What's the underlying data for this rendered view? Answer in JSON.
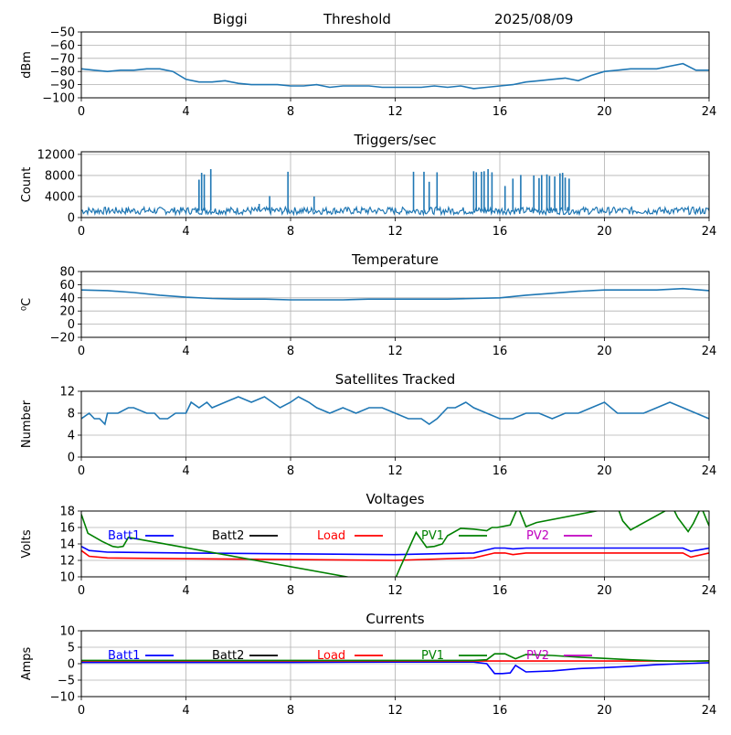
{
  "header": {
    "station": "Biggi",
    "mode": "Threshold",
    "date": "2025/08/09"
  },
  "colors": {
    "series_default": "#1f77b4",
    "grid": "#b0b0b0",
    "batt1": "#0000ff",
    "batt2": "#000000",
    "load": "#ff0000",
    "pv1": "#008000",
    "pv2": "#c000c0"
  },
  "chart_data": [
    {
      "type": "line",
      "title": "",
      "xlabel": "",
      "ylabel": "dBm",
      "xlim": [
        0,
        24
      ],
      "ylim": [
        -100,
        -50
      ],
      "xticks": [
        0,
        4,
        8,
        12,
        16,
        20,
        24
      ],
      "yticks": [
        -100,
        -90,
        -80,
        -70,
        -60,
        -50
      ],
      "grid": true,
      "series": [
        {
          "x": [
            0,
            0.5,
            1,
            1.5,
            2,
            2.5,
            3,
            3.5,
            4,
            4.5,
            5,
            5.5,
            6,
            6.5,
            7,
            7.5,
            8,
            8.5,
            9,
            9.5,
            10,
            10.5,
            11,
            11.5,
            12,
            12.5,
            13,
            13.5,
            14,
            14.5,
            15,
            15.5,
            16,
            16.5,
            17,
            17.5,
            18,
            18.5,
            19,
            19.5,
            20,
            20.5,
            21,
            21.5,
            22,
            22.5,
            23,
            23.5,
            24
          ],
          "y": [
            -78,
            -79,
            -80,
            -79,
            -79,
            -78,
            -78,
            -80,
            -86,
            -88,
            -88,
            -87,
            -89,
            -90,
            -90,
            -90,
            -91,
            -91,
            -90,
            -92,
            -91,
            -91,
            -91,
            -92,
            -92,
            -92,
            -92,
            -91,
            -92,
            -91,
            -93,
            -92,
            -91,
            -90,
            -88,
            -87,
            -86,
            -85,
            -87,
            -83,
            -80,
            -79,
            -78,
            -78,
            -78,
            -76,
            -74,
            -79,
            -79
          ]
        }
      ]
    },
    {
      "type": "line",
      "title": "Triggers/sec",
      "xlabel": "",
      "ylabel": "Count",
      "xlim": [
        0,
        24
      ],
      "ylim": [
        0,
        12500
      ],
      "xticks": [
        0,
        4,
        8,
        12,
        16,
        20,
        24
      ],
      "yticks": [
        0,
        4000,
        8000,
        12000
      ],
      "grid": true,
      "baseline": 1300,
      "spikes": [
        [
          4.5,
          7200
        ],
        [
          4.6,
          8500
        ],
        [
          4.7,
          8200
        ],
        [
          4.95,
          9200
        ],
        [
          6.8,
          2600
        ],
        [
          7.2,
          4100
        ],
        [
          7.9,
          8700
        ],
        [
          8.9,
          4000
        ],
        [
          12.7,
          8700
        ],
        [
          13.1,
          8700
        ],
        [
          13.3,
          6800
        ],
        [
          13.6,
          8600
        ],
        [
          15.0,
          8800
        ],
        [
          15.1,
          8600
        ],
        [
          15.3,
          8700
        ],
        [
          15.4,
          8800
        ],
        [
          15.55,
          9200
        ],
        [
          15.7,
          8600
        ],
        [
          16.2,
          6000
        ],
        [
          16.5,
          7400
        ],
        [
          16.8,
          8100
        ],
        [
          17.3,
          8000
        ],
        [
          17.5,
          7500
        ],
        [
          17.6,
          8100
        ],
        [
          17.8,
          8200
        ],
        [
          17.9,
          7900
        ],
        [
          18.1,
          7800
        ],
        [
          18.3,
          8400
        ],
        [
          18.4,
          8500
        ],
        [
          18.5,
          7600
        ],
        [
          18.65,
          7400
        ]
      ]
    },
    {
      "type": "line",
      "title": "Temperature",
      "xlabel": "",
      "ylabel": "⁰C",
      "xlim": [
        0,
        24
      ],
      "ylim": [
        -20,
        80
      ],
      "xticks": [
        0,
        4,
        8,
        12,
        16,
        20,
        24
      ],
      "yticks": [
        -20,
        0,
        20,
        40,
        60,
        80
      ],
      "grid": true,
      "series": [
        {
          "x": [
            0,
            1,
            2,
            3,
            4,
            5,
            6,
            7,
            8,
            9,
            10,
            11,
            12,
            13,
            14,
            15,
            16,
            17,
            18,
            19,
            20,
            21,
            22,
            23,
            24
          ],
          "y": [
            52,
            51,
            48,
            44,
            41,
            39,
            38,
            38,
            37,
            37,
            37,
            38,
            38,
            38,
            38,
            39,
            40,
            44,
            47,
            50,
            52,
            52,
            52,
            54,
            51
          ]
        }
      ]
    },
    {
      "type": "line",
      "title": "Satellites Tracked",
      "xlabel": "",
      "ylabel": "Number",
      "xlim": [
        0,
        24
      ],
      "ylim": [
        0,
        12
      ],
      "xticks": [
        0,
        4,
        8,
        12,
        16,
        20,
        24
      ],
      "yticks": [
        0,
        4,
        8,
        12
      ],
      "grid": true,
      "series": [
        {
          "x": [
            0,
            0.3,
            0.5,
            0.7,
            0.9,
            1,
            1.4,
            1.8,
            2,
            2.5,
            2.8,
            3,
            3.3,
            3.6,
            4,
            4.2,
            4.5,
            4.8,
            5,
            5.5,
            6,
            6.5,
            7,
            7.3,
            7.6,
            8,
            8.3,
            8.7,
            9,
            9.5,
            10,
            10.5,
            11,
            11.5,
            12,
            12.5,
            13,
            13.3,
            13.6,
            14,
            14.3,
            14.7,
            15,
            15.5,
            16,
            16.5,
            17,
            17.5,
            18,
            18.5,
            19,
            19.5,
            20,
            20.5,
            21,
            21.5,
            22,
            22.5,
            23,
            23.5,
            24
          ],
          "y": [
            7,
            8,
            7,
            7,
            6,
            8,
            8,
            9,
            9,
            8,
            8,
            7,
            7,
            8,
            8,
            10,
            9,
            10,
            9,
            10,
            11,
            10,
            11,
            10,
            9,
            10,
            11,
            10,
            9,
            8,
            9,
            8,
            9,
            9,
            8,
            7,
            7,
            6,
            7,
            9,
            9,
            10,
            9,
            8,
            7,
            7,
            8,
            8,
            7,
            8,
            8,
            9,
            10,
            8,
            8,
            8,
            9,
            10,
            9,
            8,
            7
          ]
        }
      ]
    },
    {
      "type": "line",
      "title": "Voltages",
      "xlabel": "",
      "ylabel": "Volts",
      "xlim": [
        0,
        24
      ],
      "ylim": [
        10,
        18
      ],
      "xticks": [
        0,
        4,
        8,
        12,
        16,
        20,
        24
      ],
      "yticks": [
        10,
        12,
        14,
        16,
        18
      ],
      "grid": true,
      "series": [
        {
          "name": "Batt1",
          "x": [
            0,
            0.3,
            1,
            4,
            8,
            12,
            15,
            15.8,
            16.2,
            16.5,
            17,
            20,
            23,
            23.3,
            24
          ],
          "y": [
            13.7,
            13.2,
            13.0,
            12.9,
            12.8,
            12.7,
            12.9,
            13.5,
            13.5,
            13.4,
            13.5,
            13.5,
            13.5,
            13.1,
            13.5
          ]
        },
        {
          "name": "Batt2",
          "x": [],
          "y": []
        },
        {
          "name": "Load",
          "x": [
            0,
            0.3,
            1,
            4,
            8,
            12,
            15,
            15.8,
            16.2,
            16.5,
            17,
            20,
            23,
            23.3,
            24
          ],
          "y": [
            13.2,
            12.5,
            12.3,
            12.2,
            12.1,
            12.0,
            12.3,
            12.9,
            12.9,
            12.7,
            12.9,
            12.9,
            12.9,
            12.4,
            12.9
          ]
        },
        {
          "name": "PV1",
          "x": [
            0,
            0.25,
            0.8,
            1.2,
            1.4,
            1.6,
            1.8,
            11.9,
            12.2,
            12.5,
            12.8,
            13.2,
            13.5,
            13.8,
            14,
            14.5,
            15,
            15.5,
            15.7,
            15.9,
            16.4,
            16.7,
            17,
            17.4,
            20.5,
            20.7,
            21,
            22.6,
            22.8,
            23.2,
            23.4,
            23.7,
            24
          ],
          "y": [
            17.6,
            15.3,
            14.3,
            13.7,
            13.6,
            13.7,
            14.8,
            9.0,
            11.2,
            13.3,
            15.4,
            13.6,
            13.7,
            14.0,
            15.0,
            15.9,
            15.8,
            15.6,
            16.0,
            16.0,
            16.3,
            18.5,
            16.1,
            16.6,
            18.5,
            16.8,
            15.7,
            18.5,
            17.2,
            15.5,
            16.5,
            18.5,
            16.2
          ]
        },
        {
          "name": "PV2",
          "x": [],
          "y": []
        }
      ]
    },
    {
      "type": "line",
      "title": "Currents",
      "xlabel": "",
      "ylabel": "Amps",
      "xlim": [
        0,
        24
      ],
      "ylim": [
        -10,
        10
      ],
      "xticks": [
        0,
        4,
        8,
        12,
        16,
        20,
        24
      ],
      "yticks": [
        -10,
        -5,
        0,
        5,
        10
      ],
      "grid": true,
      "series": [
        {
          "name": "Batt1",
          "x": [
            0,
            4,
            8,
            12,
            15,
            15.5,
            15.8,
            16.1,
            16.4,
            16.6,
            17,
            18,
            19,
            20,
            21,
            22,
            23,
            24
          ],
          "y": [
            0.4,
            0.4,
            0.4,
            0.5,
            0.5,
            0.0,
            -3.0,
            -3.0,
            -2.8,
            -0.5,
            -2.5,
            -2.2,
            -1.5,
            -1.2,
            -0.8,
            -0.3,
            0.0,
            0.3
          ]
        },
        {
          "name": "Batt2",
          "x": [],
          "y": []
        },
        {
          "name": "Load",
          "x": [
            0,
            4,
            8,
            12,
            16,
            20,
            24
          ],
          "y": [
            0.8,
            0.8,
            0.8,
            0.8,
            0.8,
            0.8,
            0.8
          ]
        },
        {
          "name": "PV1",
          "x": [
            0,
            4,
            8,
            12,
            15,
            15.5,
            15.8,
            16.2,
            16.6,
            17,
            18,
            19,
            20,
            21,
            22,
            23,
            24
          ],
          "y": [
            1.0,
            1.0,
            1.0,
            1.0,
            1.0,
            1.2,
            3.0,
            3.0,
            1.5,
            2.8,
            2.5,
            2.0,
            1.6,
            1.2,
            0.9,
            0.7,
            0.9
          ]
        },
        {
          "name": "PV2",
          "x": [],
          "y": []
        }
      ]
    }
  ]
}
